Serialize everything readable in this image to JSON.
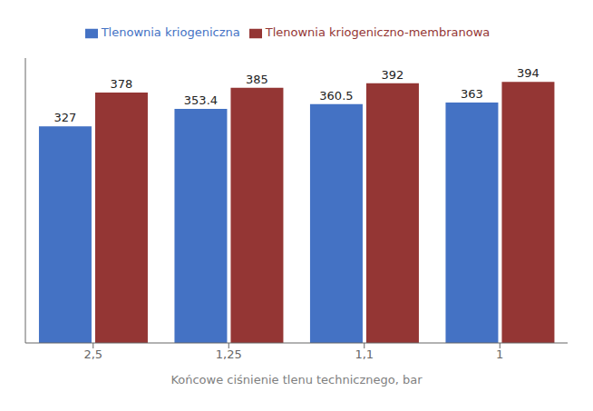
{
  "chart_data": {
    "type": "bar",
    "xlabel": "Końcowe ciśnienie tlenu technicznego, bar",
    "categories": [
      "2,5",
      "1,25",
      "1,1",
      "1"
    ],
    "series": [
      {
        "name": "Tlenownia kriogeniczna",
        "values": [
          327,
          353.4,
          360.5,
          363
        ],
        "color": "#4472C4"
      },
      {
        "name": "Tlenownia kriogeniczno-membranowa",
        "values": [
          378,
          385,
          392,
          394
        ],
        "color": "#943634"
      }
    ],
    "ylim": [
      0,
      430
    ],
    "grid": false,
    "legend": "top",
    "data_labels": true,
    "tick_labels": "x"
  }
}
